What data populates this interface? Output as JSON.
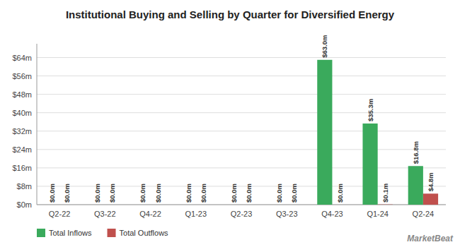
{
  "chart_data": {
    "type": "bar",
    "title": "Institutional Buying and Selling by Quarter for Diversified Energy",
    "categories": [
      "Q2-22",
      "Q3-22",
      "Q4-22",
      "Q1-23",
      "Q2-23",
      "Q3-23",
      "Q4-23",
      "Q1-24",
      "Q2-24"
    ],
    "series": [
      {
        "name": "Total Inflows",
        "color": "#3aaa5c",
        "values": [
          0.0,
          0.0,
          0.0,
          0.0,
          0.0,
          0.0,
          63.0,
          35.3,
          16.8
        ],
        "value_labels": [
          "$0.0m",
          "$0.0m",
          "$0.0m",
          "$0.0m",
          "$0.0m",
          "$0.0m",
          "$63.0m",
          "$35.3m",
          "$16.8m"
        ]
      },
      {
        "name": "Total Outflows",
        "color": "#c0504d",
        "values": [
          0.0,
          0.0,
          0.0,
          0.0,
          0.0,
          0.0,
          0.0,
          0.1,
          4.8
        ],
        "value_labels": [
          "$0.0m",
          "$0.0m",
          "$0.0m",
          "$0.0m",
          "$0.0m",
          "$0.0m",
          "$0.0m",
          "$0.1m",
          "$4.8m"
        ]
      }
    ],
    "ylim": [
      0,
      70
    ],
    "yticks": [
      {
        "value": 0,
        "label": "$0m"
      },
      {
        "value": 8,
        "label": "$8m"
      },
      {
        "value": 16,
        "label": "$16m"
      },
      {
        "value": 24,
        "label": "$24m"
      },
      {
        "value": 32,
        "label": "$32m"
      },
      {
        "value": 40,
        "label": "$40m"
      },
      {
        "value": 48,
        "label": "$48m"
      },
      {
        "value": 56,
        "label": "$56m"
      },
      {
        "value": 64,
        "label": "$64m"
      }
    ],
    "grid": true,
    "legend": "lower left",
    "data_labels": true,
    "annotations": [
      "MarketBeat"
    ]
  }
}
